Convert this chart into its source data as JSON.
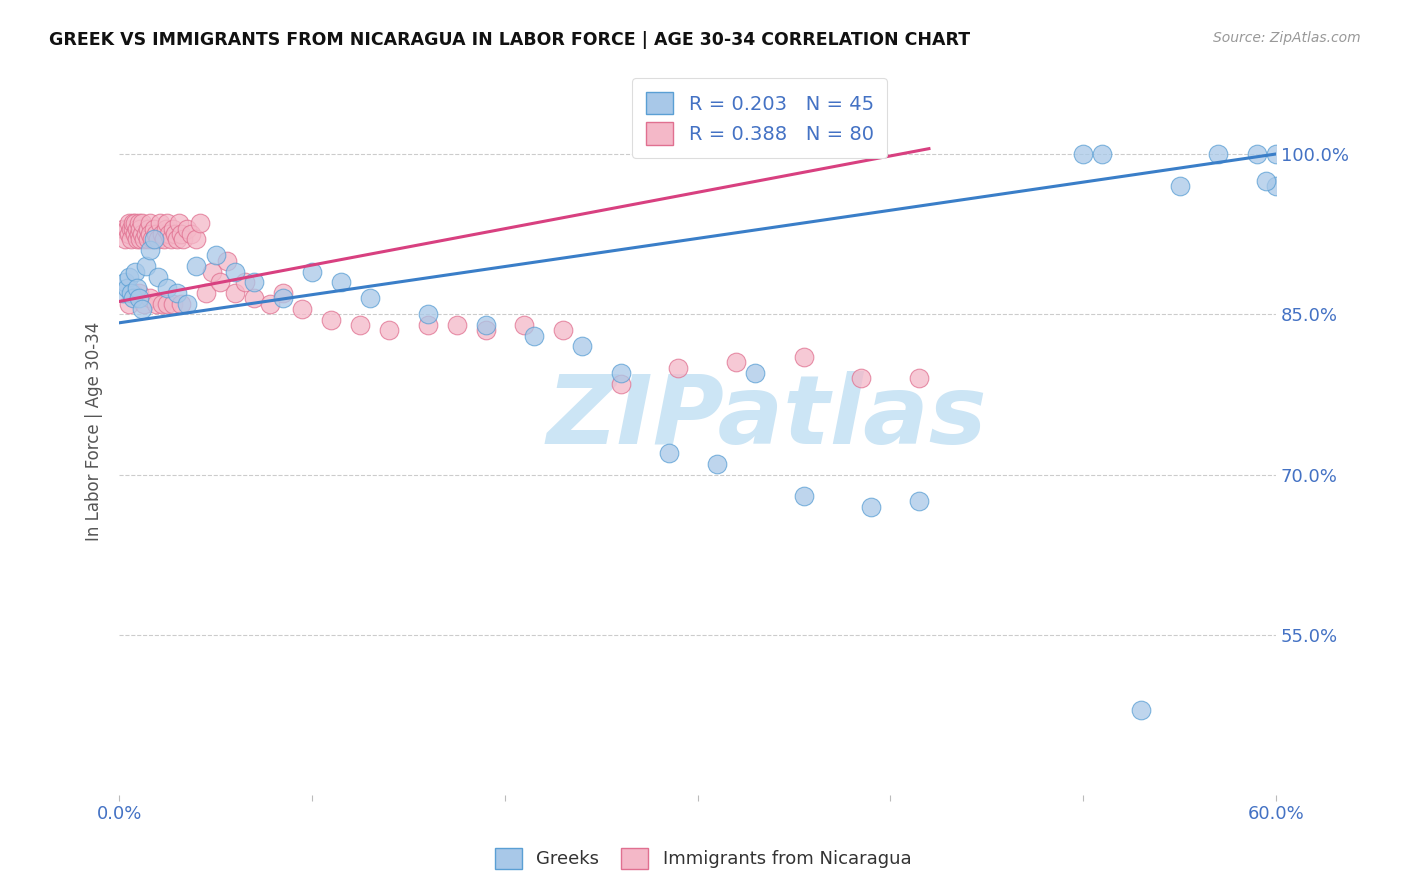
{
  "title": "GREEK VS IMMIGRANTS FROM NICARAGUA IN LABOR FORCE | AGE 30-34 CORRELATION CHART",
  "source": "Source: ZipAtlas.com",
  "ylabel": "In Labor Force | Age 30-34",
  "x_min": 0.0,
  "x_max": 0.6,
  "y_min": 0.4,
  "y_max": 1.08,
  "y_ticks": [
    0.55,
    0.7,
    0.85,
    1.0
  ],
  "y_tick_labels": [
    "55.0%",
    "70.0%",
    "85.0%",
    "100.0%"
  ],
  "x_tick_labels_show": [
    "0.0%",
    "60.0%"
  ],
  "grid_color": "#cccccc",
  "background_color": "#ffffff",
  "watermark": "ZIPatlas",
  "watermark_color": "#cce5f5",
  "legend_R_blue": "0.203",
  "legend_N_blue": "45",
  "legend_R_pink": "0.388",
  "legend_N_pink": "80",
  "blue_fill": "#a8c8e8",
  "blue_edge": "#5a9fd4",
  "pink_fill": "#f4b8c8",
  "pink_edge": "#e07090",
  "blue_line_color": "#3a7ec8",
  "pink_line_color": "#d84080",
  "label_color": "#4472c4",
  "tick_color": "#4472c4",
  "legend_label_blue": "Greeks",
  "legend_label_pink": "Immigrants from Nicaragua",
  "blue_x": [
    0.002,
    0.003,
    0.004,
    0.005,
    0.006,
    0.007,
    0.008,
    0.009,
    0.01,
    0.012,
    0.014,
    0.016,
    0.018,
    0.02,
    0.025,
    0.03,
    0.035,
    0.04,
    0.05,
    0.06,
    0.07,
    0.085,
    0.1,
    0.115,
    0.13,
    0.16,
    0.19,
    0.215,
    0.24,
    0.26,
    0.285,
    0.31,
    0.33,
    0.355,
    0.39,
    0.415,
    0.5,
    0.51,
    0.53,
    0.55,
    0.57,
    0.59,
    0.6,
    0.6,
    0.595
  ],
  "blue_y": [
    0.87,
    0.88,
    0.875,
    0.885,
    0.87,
    0.865,
    0.89,
    0.875,
    0.865,
    0.855,
    0.895,
    0.91,
    0.92,
    0.885,
    0.875,
    0.87,
    0.86,
    0.895,
    0.905,
    0.89,
    0.88,
    0.865,
    0.89,
    0.88,
    0.865,
    0.85,
    0.84,
    0.83,
    0.82,
    0.795,
    0.72,
    0.71,
    0.795,
    0.68,
    0.67,
    0.675,
    1.0,
    1.0,
    0.48,
    0.97,
    1.0,
    1.0,
    0.97,
    1.0,
    0.975
  ],
  "pink_x": [
    0.002,
    0.003,
    0.004,
    0.005,
    0.005,
    0.006,
    0.006,
    0.007,
    0.007,
    0.008,
    0.008,
    0.009,
    0.009,
    0.01,
    0.01,
    0.011,
    0.011,
    0.012,
    0.012,
    0.013,
    0.014,
    0.015,
    0.015,
    0.016,
    0.016,
    0.017,
    0.018,
    0.019,
    0.02,
    0.021,
    0.022,
    0.023,
    0.024,
    0.025,
    0.026,
    0.027,
    0.028,
    0.029,
    0.03,
    0.031,
    0.032,
    0.033,
    0.035,
    0.037,
    0.04,
    0.042,
    0.045,
    0.048,
    0.052,
    0.056,
    0.06,
    0.065,
    0.07,
    0.078,
    0.085,
    0.095,
    0.11,
    0.125,
    0.14,
    0.16,
    0.175,
    0.19,
    0.21,
    0.23,
    0.26,
    0.29,
    0.32,
    0.355,
    0.385,
    0.415,
    0.005,
    0.007,
    0.01,
    0.013,
    0.016,
    0.019,
    0.022,
    0.025,
    0.028,
    0.032
  ],
  "pink_y": [
    0.93,
    0.92,
    0.93,
    0.935,
    0.925,
    0.93,
    0.92,
    0.93,
    0.935,
    0.925,
    0.935,
    0.93,
    0.92,
    0.925,
    0.935,
    0.92,
    0.93,
    0.925,
    0.935,
    0.92,
    0.925,
    0.93,
    0.92,
    0.935,
    0.925,
    0.92,
    0.93,
    0.925,
    0.92,
    0.935,
    0.925,
    0.92,
    0.93,
    0.935,
    0.925,
    0.92,
    0.93,
    0.925,
    0.92,
    0.935,
    0.925,
    0.92,
    0.93,
    0.925,
    0.92,
    0.935,
    0.87,
    0.89,
    0.88,
    0.9,
    0.87,
    0.88,
    0.865,
    0.86,
    0.87,
    0.855,
    0.845,
    0.84,
    0.835,
    0.84,
    0.84,
    0.835,
    0.84,
    0.835,
    0.785,
    0.8,
    0.805,
    0.81,
    0.79,
    0.79,
    0.86,
    0.87,
    0.87,
    0.86,
    0.865,
    0.86,
    0.86,
    0.86,
    0.86,
    0.86
  ],
  "blue_line_x": [
    0.0,
    0.6
  ],
  "blue_line_y": [
    0.842,
    1.0
  ],
  "pink_line_x": [
    0.0,
    0.42
  ],
  "pink_line_y": [
    0.862,
    1.005
  ]
}
